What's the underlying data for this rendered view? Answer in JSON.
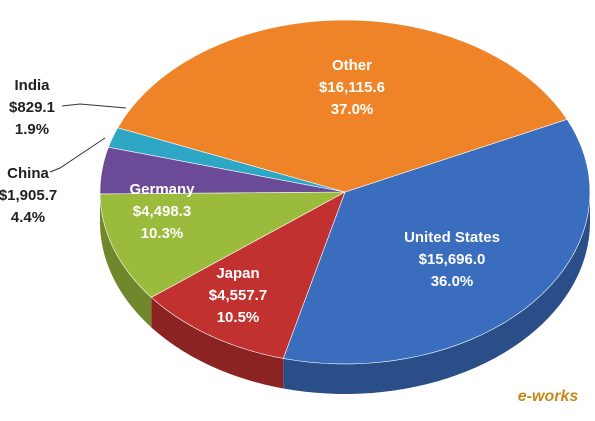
{
  "chart_data": {
    "type": "pie",
    "categories": [
      "United States",
      "Japan",
      "Germany",
      "China",
      "India",
      "Other"
    ],
    "values": [
      15696.0,
      4557.7,
      4498.3,
      1905.7,
      829.1,
      16115.6
    ],
    "value_labels": [
      "$15,696.0",
      "$4,557.7",
      "$4,498.3",
      "$1,905.7",
      "$829.1",
      "$16,115.6"
    ],
    "share_labels": [
      "36.0%",
      "10.5%",
      "10.3%",
      "4.4%",
      "1.9%",
      "37.0%"
    ],
    "colors": [
      "#3a6dbd",
      "#c0312f",
      "#9bbb3c",
      "#6b4a98",
      "#2ea7c6",
      "#ee8427"
    ],
    "watermark": "e-works"
  }
}
